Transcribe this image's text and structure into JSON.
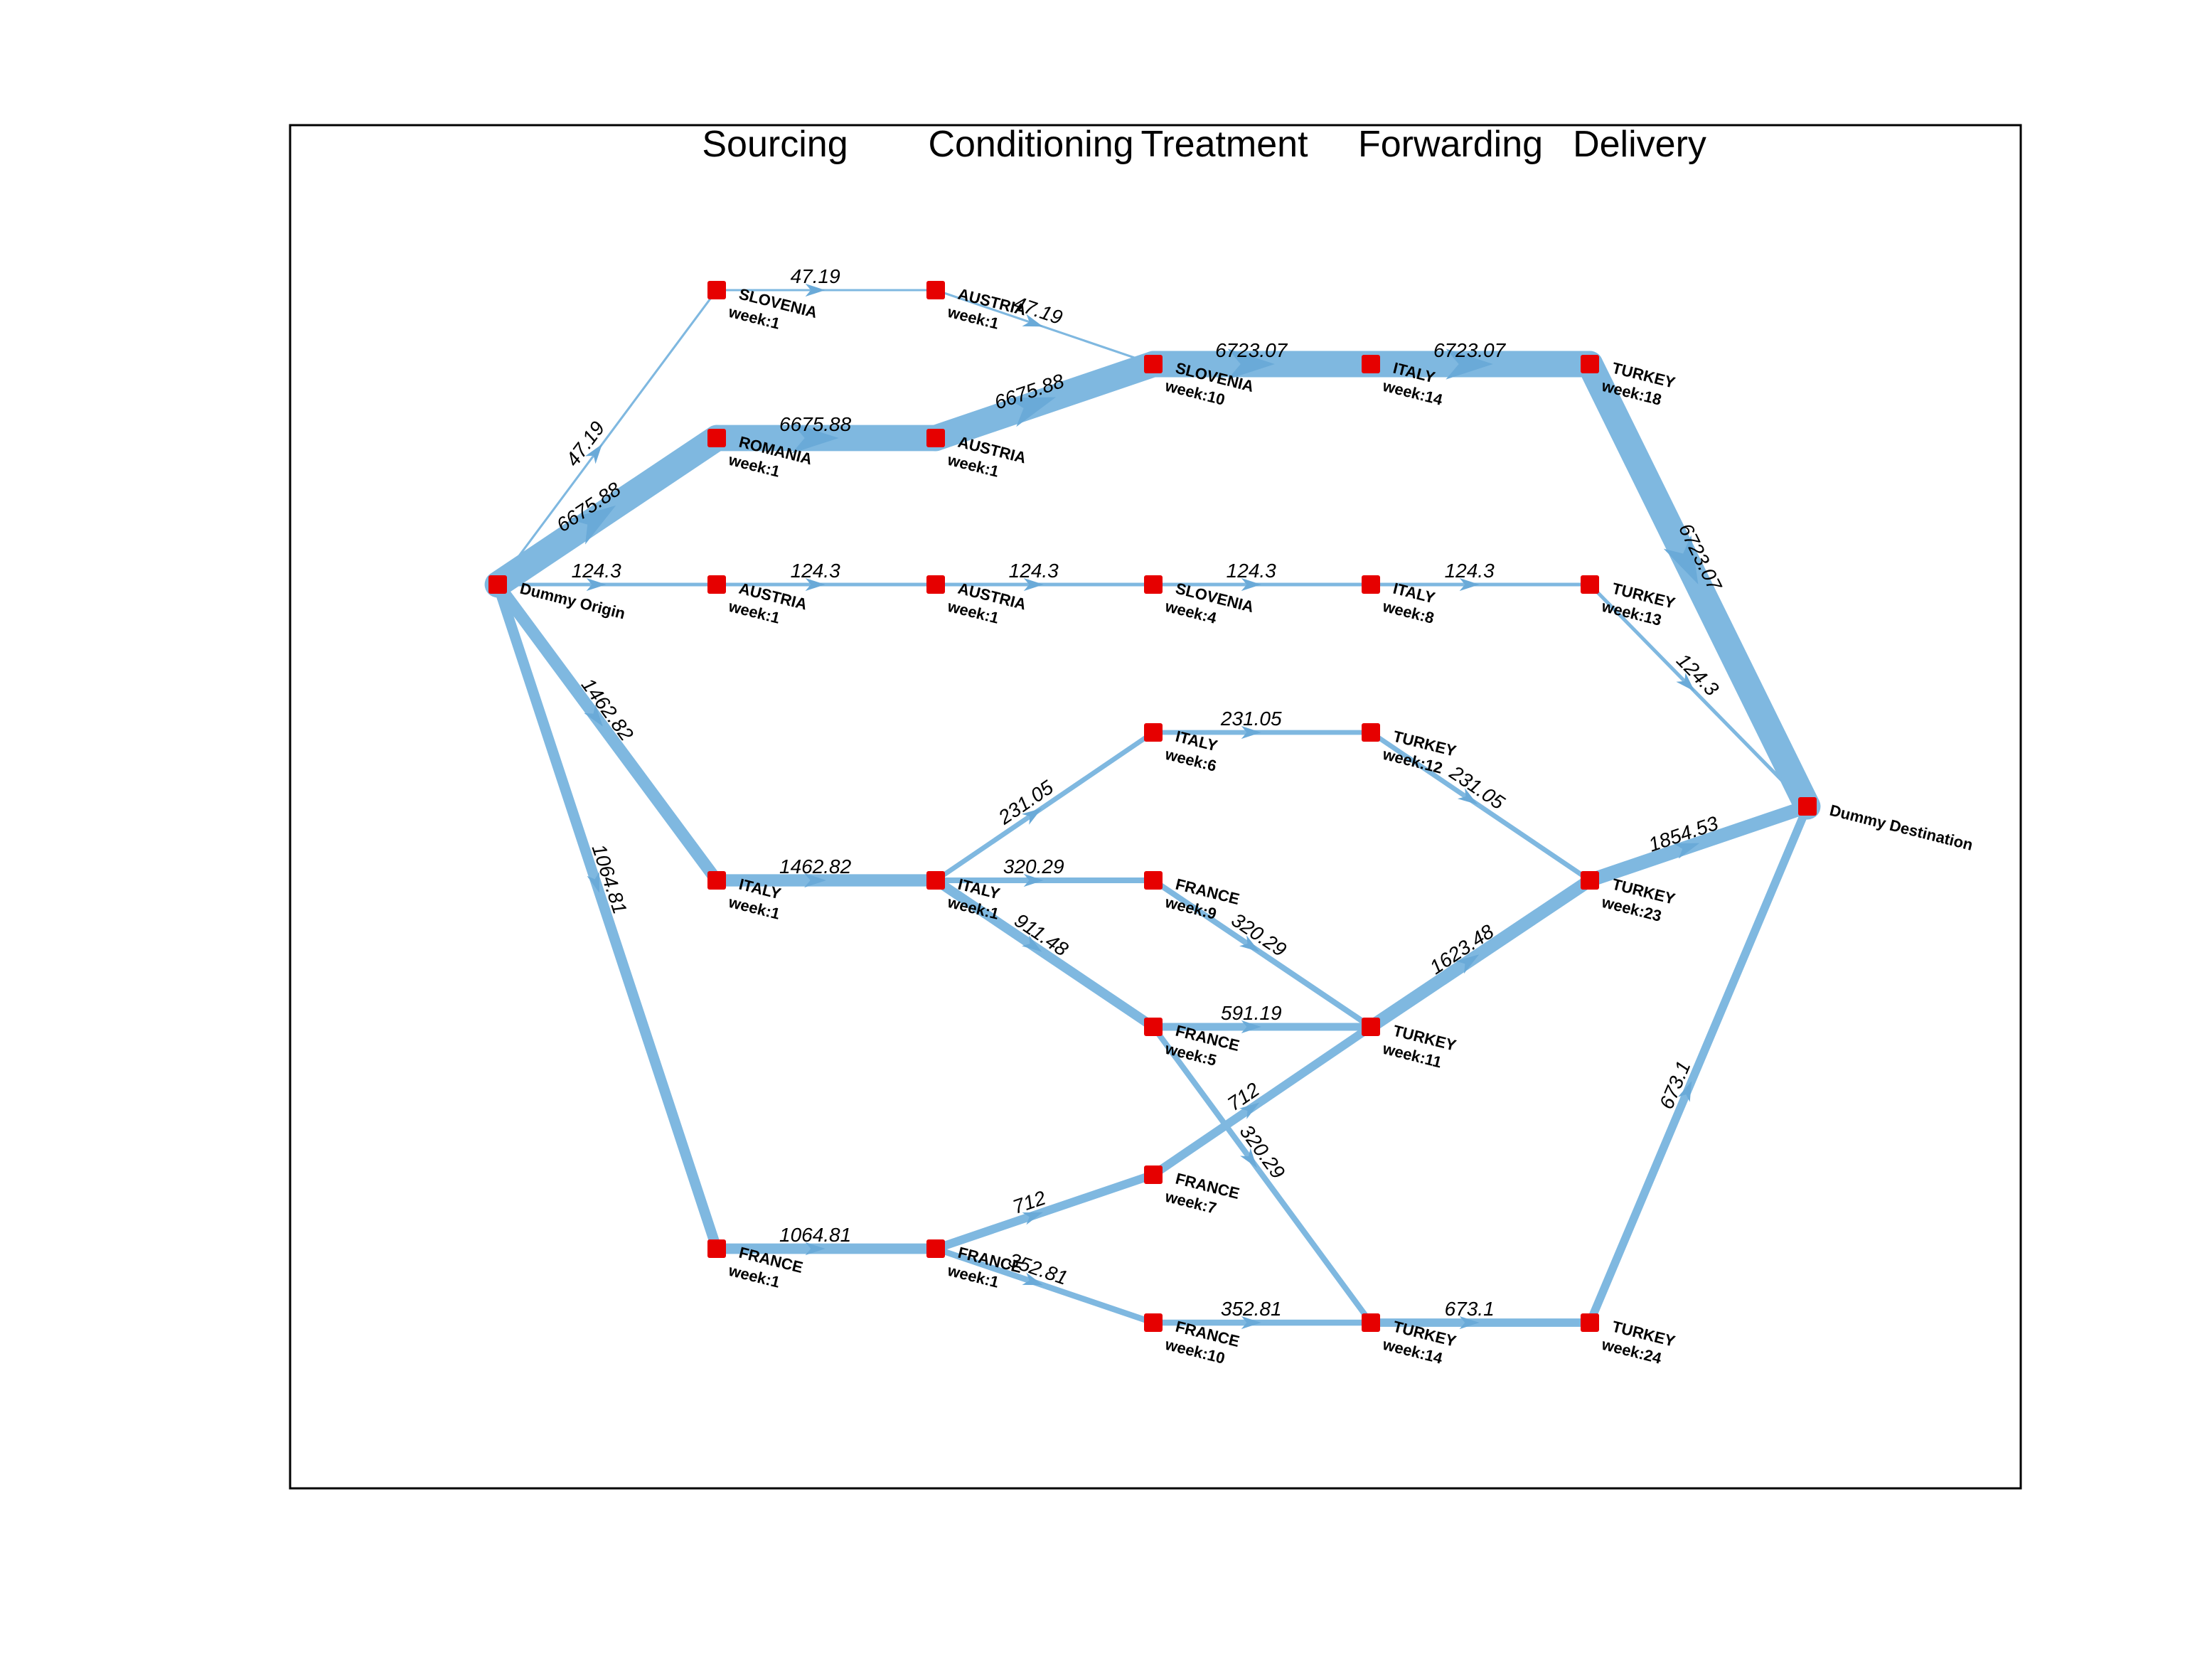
{
  "stages": [
    "Sourcing",
    "Conditioning",
    "Treatment",
    "Forwarding",
    "Delivery"
  ],
  "colors": {
    "edge": "#7fb8e0",
    "arrow": "#6aaad8",
    "node": "#e60000",
    "frame": "#000000"
  },
  "nodes": [
    {
      "id": "origin",
      "name": "Dummy Origin",
      "week": ""
    },
    {
      "id": "dest",
      "name": "Dummy Destination",
      "week": ""
    },
    {
      "id": "s_slo",
      "name": "SLOVENIA",
      "week": "week:1"
    },
    {
      "id": "s_rom",
      "name": "ROMANIA",
      "week": "week:1"
    },
    {
      "id": "s_aus",
      "name": "AUSTRIA",
      "week": "week:1"
    },
    {
      "id": "s_ita",
      "name": "ITALY",
      "week": "week:1"
    },
    {
      "id": "s_fra",
      "name": "FRANCE",
      "week": "week:1"
    },
    {
      "id": "c_aus1",
      "name": "AUSTRIA",
      "week": "week:1"
    },
    {
      "id": "c_aus2",
      "name": "AUSTRIA",
      "week": "week:1"
    },
    {
      "id": "c_aus3",
      "name": "AUSTRIA",
      "week": "week:1"
    },
    {
      "id": "c_ita",
      "name": "ITALY",
      "week": "week:1"
    },
    {
      "id": "c_fra",
      "name": "FRANCE",
      "week": "week:1"
    },
    {
      "id": "t_slo10",
      "name": "SLOVENIA",
      "week": "week:10"
    },
    {
      "id": "t_slo4",
      "name": "SLOVENIA",
      "week": "week:4"
    },
    {
      "id": "t_ita6",
      "name": "ITALY",
      "week": "week:6"
    },
    {
      "id": "t_fra9",
      "name": "FRANCE",
      "week": "week:9"
    },
    {
      "id": "t_fra5",
      "name": "FRANCE",
      "week": "week:5"
    },
    {
      "id": "t_fra7",
      "name": "FRANCE",
      "week": "week:7"
    },
    {
      "id": "t_fra10",
      "name": "FRANCE",
      "week": "week:10"
    },
    {
      "id": "f_ita14",
      "name": "ITALY",
      "week": "week:14"
    },
    {
      "id": "f_ita8",
      "name": "ITALY",
      "week": "week:8"
    },
    {
      "id": "f_tur12",
      "name": "TURKEY",
      "week": "week:12"
    },
    {
      "id": "f_tur11",
      "name": "TURKEY",
      "week": "week:11"
    },
    {
      "id": "f_tur14",
      "name": "TURKEY",
      "week": "week:14"
    },
    {
      "id": "d_tur18",
      "name": "TURKEY",
      "week": "week:18"
    },
    {
      "id": "d_tur13",
      "name": "TURKEY",
      "week": "week:13"
    },
    {
      "id": "d_tur23",
      "name": "TURKEY",
      "week": "week:23"
    },
    {
      "id": "d_tur24",
      "name": "TURKEY",
      "week": "week:24"
    }
  ],
  "edges": [
    {
      "from": "origin",
      "to": "s_slo",
      "flow": 47.19,
      "label": "47.19"
    },
    {
      "from": "origin",
      "to": "s_rom",
      "flow": 6675.88,
      "label": "6675.88"
    },
    {
      "from": "origin",
      "to": "s_aus",
      "flow": 124.3,
      "label": "124.3"
    },
    {
      "from": "origin",
      "to": "s_ita",
      "flow": 1462.82,
      "label": "1462.82"
    },
    {
      "from": "origin",
      "to": "s_fra",
      "flow": 1064.81,
      "label": "1064.81"
    },
    {
      "from": "s_slo",
      "to": "c_aus1",
      "flow": 47.19,
      "label": "47.19"
    },
    {
      "from": "s_rom",
      "to": "c_aus2",
      "flow": 6675.88,
      "label": "6675.88"
    },
    {
      "from": "s_aus",
      "to": "c_aus3",
      "flow": 124.3,
      "label": "124.3"
    },
    {
      "from": "s_ita",
      "to": "c_ita",
      "flow": 1462.82,
      "label": "1462.82"
    },
    {
      "from": "s_fra",
      "to": "c_fra",
      "flow": 1064.81,
      "label": "1064.81"
    },
    {
      "from": "c_aus1",
      "to": "t_slo10",
      "flow": 47.19,
      "label": "47.19"
    },
    {
      "from": "c_aus2",
      "to": "t_slo10",
      "flow": 6675.88,
      "label": "6675.88"
    },
    {
      "from": "c_aus3",
      "to": "t_slo4",
      "flow": 124.3,
      "label": "124.3"
    },
    {
      "from": "c_ita",
      "to": "t_ita6",
      "flow": 231.05,
      "label": "231.05"
    },
    {
      "from": "c_ita",
      "to": "t_fra9",
      "flow": 320.29,
      "label": "320.29"
    },
    {
      "from": "c_ita",
      "to": "t_fra5",
      "flow": 911.48,
      "label": "911.48"
    },
    {
      "from": "c_fra",
      "to": "t_fra7",
      "flow": 712,
      "label": "712"
    },
    {
      "from": "c_fra",
      "to": "t_fra10",
      "flow": 352.81,
      "label": "352.81"
    },
    {
      "from": "t_slo10",
      "to": "f_ita14",
      "flow": 6723.07,
      "label": "6723.07"
    },
    {
      "from": "t_slo4",
      "to": "f_ita8",
      "flow": 124.3,
      "label": "124.3"
    },
    {
      "from": "t_ita6",
      "to": "f_tur12",
      "flow": 231.05,
      "label": "231.05"
    },
    {
      "from": "t_fra9",
      "to": "f_tur11",
      "flow": 320.29,
      "label": "320.29"
    },
    {
      "from": "t_fra5",
      "to": "f_tur11",
      "flow": 591.19,
      "label": "591.19"
    },
    {
      "from": "t_fra5",
      "to": "f_tur14",
      "flow": 320.29,
      "label": "320.29"
    },
    {
      "from": "t_fra7",
      "to": "f_tur11",
      "flow": 712,
      "label": "712"
    },
    {
      "from": "t_fra10",
      "to": "f_tur14",
      "flow": 352.81,
      "label": "352.81"
    },
    {
      "from": "f_ita14",
      "to": "d_tur18",
      "flow": 6723.07,
      "label": "6723.07"
    },
    {
      "from": "f_ita8",
      "to": "d_tur13",
      "flow": 124.3,
      "label": "124.3"
    },
    {
      "from": "f_tur12",
      "to": "d_tur23",
      "flow": 231.05,
      "label": "231.05"
    },
    {
      "from": "f_tur11",
      "to": "d_tur23",
      "flow": 1623.48,
      "label": "1623.48"
    },
    {
      "from": "f_tur14",
      "to": "d_tur24",
      "flow": 673.1,
      "label": "673.1"
    },
    {
      "from": "d_tur18",
      "to": "dest",
      "flow": 6723.07,
      "label": "6723.07"
    },
    {
      "from": "d_tur13",
      "to": "dest",
      "flow": 124.3,
      "label": "124.3"
    },
    {
      "from": "d_tur23",
      "to": "dest",
      "flow": 1854.53,
      "label": "1854.53"
    },
    {
      "from": "d_tur24",
      "to": "dest",
      "flow": 673.1,
      "label": "673.1"
    }
  ]
}
